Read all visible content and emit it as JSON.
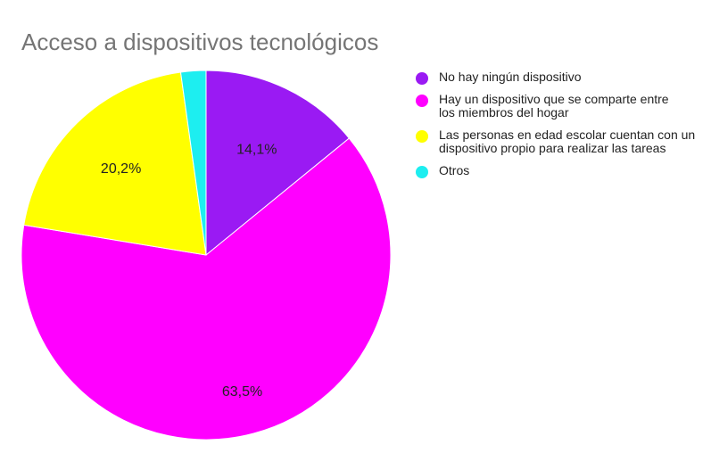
{
  "chart_data": {
    "type": "pie",
    "title": "Acceso a dispositivos tecnológicos",
    "legend_position": "right",
    "start_angle": "12 o'clock",
    "direction": "clockwise",
    "slices": [
      {
        "name": "No hay ningún dispositivo",
        "value": 14.1,
        "label": "14,1%",
        "color": "#9A1AF3"
      },
      {
        "name": "Hay un dispositivo que se comparte entre los miembros del hogar",
        "value": 63.5,
        "label": "63,5%",
        "color": "#FF00FF"
      },
      {
        "name": "Las personas en edad escolar cuentan con un dispositivo propio para realizar las tareas",
        "value": 20.2,
        "label": "20,2%",
        "color": "#FFFF00"
      },
      {
        "name": "Otros",
        "value": 2.2,
        "label": "",
        "color": "#1DEEF0"
      }
    ]
  }
}
